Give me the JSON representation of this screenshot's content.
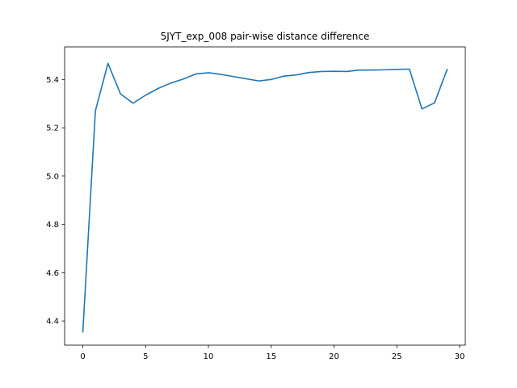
{
  "chart_data": {
    "type": "line",
    "title": "5JYT_exp_008 pair-wise distance difference",
    "xlabel": "",
    "ylabel": "",
    "xlim": [
      -1.45,
      30.45
    ],
    "ylim": [
      4.3,
      5.535
    ],
    "xticks": [
      0,
      5,
      10,
      15,
      20,
      25,
      30
    ],
    "xtick_labels": [
      "0",
      "5",
      "10",
      "15",
      "20",
      "25",
      "30"
    ],
    "yticks": [
      4.4,
      4.6,
      4.8,
      5.0,
      5.2,
      5.4
    ],
    "ytick_labels": [
      "4.4",
      "4.6",
      "4.8",
      "5.0",
      "5.2",
      "5.4"
    ],
    "grid": false,
    "legend": "none",
    "line_color": "#1f77b4",
    "series": [
      {
        "x": [
          0,
          1,
          2,
          3,
          4,
          5,
          6,
          7,
          8,
          9,
          10,
          11,
          12,
          13,
          14,
          15,
          16,
          17,
          18,
          19,
          20,
          21,
          22,
          23,
          24,
          25,
          26,
          27,
          28,
          29
        ],
        "values": [
          4.355,
          5.27,
          5.467,
          5.34,
          5.302,
          5.335,
          5.363,
          5.385,
          5.402,
          5.423,
          5.428,
          5.421,
          5.412,
          5.403,
          5.394,
          5.4,
          5.414,
          5.419,
          5.429,
          5.433,
          5.434,
          5.433,
          5.439,
          5.439,
          5.44,
          5.442,
          5.443,
          5.278,
          5.303,
          5.441
        ]
      }
    ]
  }
}
